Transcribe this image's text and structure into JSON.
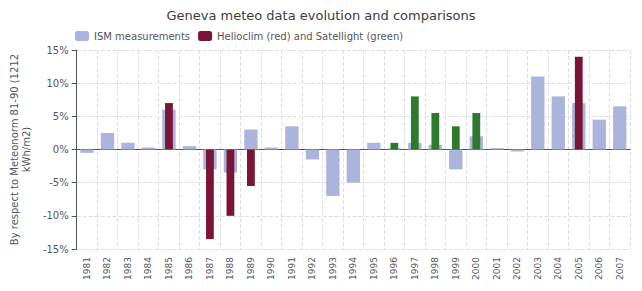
{
  "chart_data": {
    "type": "bar",
    "title": "Geneva meteo data evolution and comparisons",
    "ylabel": "By respect to Meteonorm 81-90 (1212\nkWh/m2)",
    "categories": [
      "1981",
      "1982",
      "1983",
      "1984",
      "1985",
      "1986",
      "1987",
      "1988",
      "1989",
      "1990",
      "1991",
      "1992",
      "1993",
      "1994",
      "1995",
      "1996",
      "1997",
      "1998",
      "1999",
      "2000",
      "2001",
      "2002",
      "2003",
      "2004",
      "2005",
      "2006",
      "2007"
    ],
    "series": [
      {
        "name": "ISM measurements",
        "color": "#aab4dc",
        "values": [
          -0.5,
          2.5,
          1.0,
          0.3,
          6.0,
          0.5,
          -3.0,
          -3.5,
          3.0,
          0.3,
          3.5,
          -1.5,
          -7.0,
          -5.0,
          1.0,
          0.2,
          1.0,
          0.7,
          -3.0,
          2.0,
          0.2,
          -0.3,
          11.0,
          8.0,
          7.0,
          4.5,
          6.5
        ]
      },
      {
        "name": "Helioclim (red) and Satellight (green)",
        "color": "#7b1535",
        "values": [
          null,
          null,
          null,
          null,
          7.0,
          null,
          -13.5,
          -10.0,
          -5.5,
          null,
          null,
          null,
          null,
          null,
          null,
          1.0,
          8.0,
          5.5,
          3.5,
          5.5,
          null,
          null,
          null,
          null,
          14.0,
          null,
          null
        ],
        "colors": [
          null,
          null,
          null,
          null,
          "#7b1535",
          null,
          "#7b1535",
          "#7b1535",
          "#7b1535",
          null,
          null,
          null,
          null,
          null,
          null,
          "#2d7a2d",
          "#2d7a2d",
          "#2d7a2d",
          "#2d7a2d",
          "#2d7a2d",
          null,
          null,
          null,
          null,
          "#7b1535",
          null,
          null
        ]
      }
    ],
    "ylim": [
      -15,
      15
    ],
    "yticks": [
      {
        "value": -15,
        "label": "-15%"
      },
      {
        "value": -10,
        "label": "-10%"
      },
      {
        "value": -5,
        "label": "-5%"
      },
      {
        "value": 0,
        "label": "0%"
      },
      {
        "value": 5,
        "label": "5%"
      },
      {
        "value": 10,
        "label": "10%"
      },
      {
        "value": 15,
        "label": "15%"
      }
    ],
    "grid": true,
    "legend": "upper left"
  }
}
